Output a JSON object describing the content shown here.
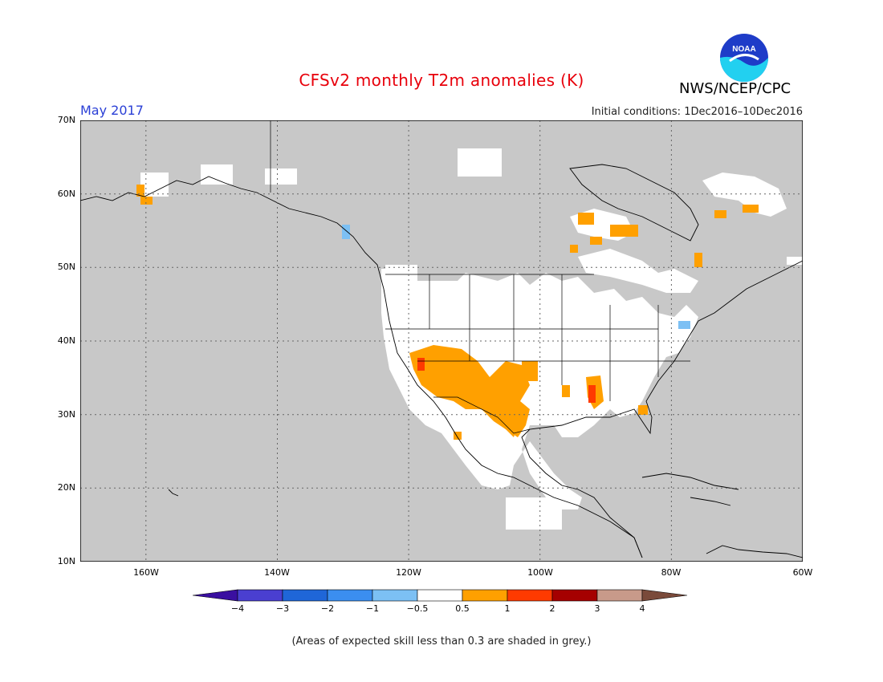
{
  "title": "CFSv2 monthly T2m anomalies (K)",
  "period": "May 2017",
  "initial_conditions": "Initial conditions: 1Dec2016–10Dec2016",
  "agency": "NWS/NCEP/CPC",
  "logo_text": "NOAA",
  "footnote": "(Areas of expected skill less than 0.3 are shaded in grey.)",
  "map": {
    "lon_range": [
      -170,
      -60
    ],
    "lat_range": [
      10,
      70
    ],
    "lat_labels": [
      "70N",
      "60N",
      "50N",
      "40N",
      "30N",
      "20N",
      "10N"
    ],
    "lon_labels": [
      "160W",
      "140W",
      "120W",
      "100W",
      "80W",
      "60W"
    ],
    "background_color": "#c8c8c8",
    "grid": "dotted"
  },
  "legend": {
    "labels": [
      "−4",
      "−3",
      "−2",
      "−1",
      "−0.5",
      "0.5",
      "1",
      "2",
      "3",
      "4"
    ],
    "colors": [
      "#3a0fa0",
      "#4a3fd0",
      "#1f66d8",
      "#3b8ef0",
      "#7cc0f4",
      "#ffffff",
      "#ffa000",
      "#ff3a00",
      "#a50000",
      "#c89a8a",
      "#7a4a3a"
    ]
  },
  "colors": {
    "grey_mask": "#c8c8c8",
    "neutral": "#ffffff",
    "warm_05_1": "#ffa000",
    "warm_1_2": "#ff3a00",
    "cool_05_1": "#7cc0f4"
  }
}
